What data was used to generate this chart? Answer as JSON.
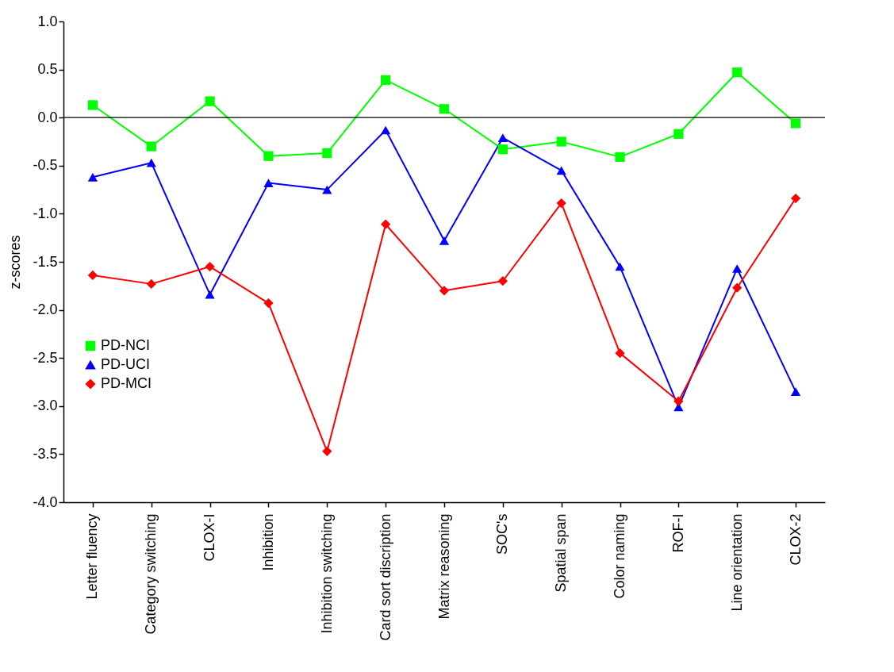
{
  "chart_data": {
    "type": "line",
    "ylabel": "z-scores",
    "categories": [
      "Letter fluency",
      "Category switching",
      "CLOX-I",
      "Inhibition",
      "Inhibition switching",
      "Card sort discription",
      "Matrix reasoning",
      "SOC's",
      "Spatial span",
      "Color naming",
      "ROF-I",
      "Line orientation",
      "CLOX-2"
    ],
    "series": [
      {
        "name": "PD-NCI",
        "color": "#00ff00",
        "marker": "square",
        "values": [
          0.13,
          -0.3,
          0.17,
          -0.4,
          -0.37,
          0.39,
          0.09,
          -0.33,
          -0.25,
          -0.41,
          -0.17,
          0.47,
          -0.06
        ]
      },
      {
        "name": "PD-UCI",
        "color": "#0000ff",
        "marker": "triangle",
        "values": [
          -0.62,
          -0.47,
          -1.84,
          -0.68,
          -0.75,
          -0.13,
          -1.28,
          -0.21,
          -0.55,
          -1.55,
          -3.01,
          -1.57,
          -2.85
        ]
      },
      {
        "name": "PD-MCI",
        "color": "#ff0000",
        "marker": "diamond",
        "values": [
          -1.64,
          -1.73,
          -1.55,
          -1.93,
          -3.47,
          -1.11,
          -1.8,
          -1.7,
          -0.89,
          -2.45,
          -2.95,
          -1.77,
          -0.84
        ]
      }
    ],
    "ylim": [
      -4.0,
      1.0
    ],
    "yticks": [
      {
        "value": -4,
        "label": "-4.0"
      },
      {
        "value": -3.5,
        "label": "-3.5"
      },
      {
        "value": -3,
        "label": "-3.0"
      },
      {
        "value": -2.5,
        "label": "-2.5"
      },
      {
        "value": -2,
        "label": "-2.0"
      },
      {
        "value": -1.5,
        "label": "-1.5"
      },
      {
        "value": -1,
        "label": "-1.0"
      },
      {
        "value": -0.5,
        "label": "-0.5"
      },
      {
        "value": 0,
        "label": "0.0"
      },
      {
        "value": 0.5,
        "label": "0.5"
      },
      {
        "value": 1,
        "label": "1.0"
      }
    ],
    "ref_lines": [
      {
        "axis": "y",
        "value": 0,
        "color": "#000000"
      }
    ],
    "legend": "left",
    "grid": false,
    "line_style": "solid"
  }
}
